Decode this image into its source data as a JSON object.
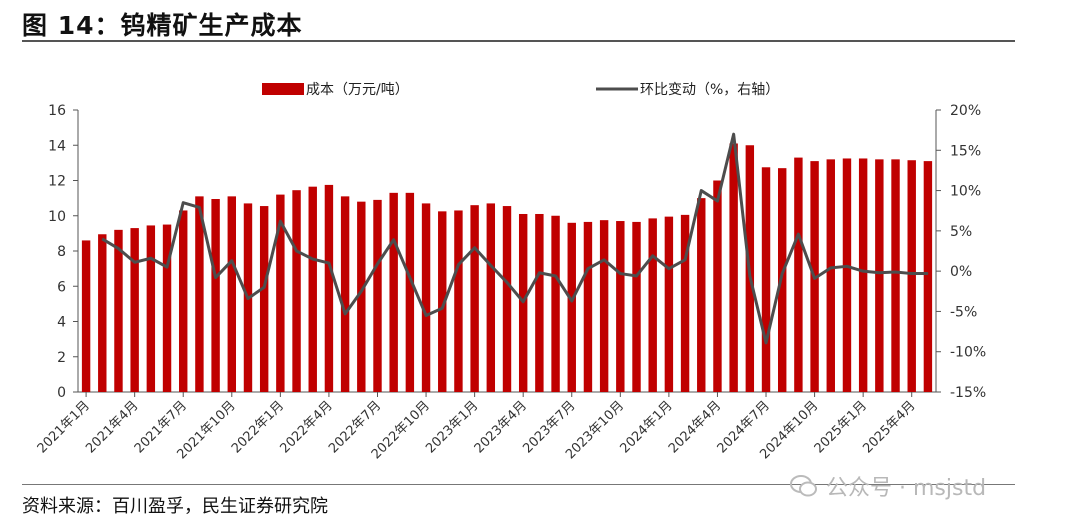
{
  "title": "图 14：钨精矿生产成本",
  "source": "资料来源：百川盈孚，民生证券研究院",
  "watermark": "公众号 · msjstd",
  "chart_data": {
    "type": "bar+line",
    "categories": [
      "2021年1月",
      "2021年2月",
      "2021年3月",
      "2021年4月",
      "2021年5月",
      "2021年6月",
      "2021年7月",
      "2021年8月",
      "2021年9月",
      "2021年10月",
      "2021年11月",
      "2021年12月",
      "2022年1月",
      "2022年2月",
      "2022年3月",
      "2022年4月",
      "2022年5月",
      "2022年6月",
      "2022年7月",
      "2022年8月",
      "2022年9月",
      "2022年10月",
      "2022年11月",
      "2022年12月",
      "2023年1月",
      "2023年2月",
      "2023年3月",
      "2023年4月",
      "2023年5月",
      "2023年6月",
      "2023年7月",
      "2023年8月",
      "2023年9月",
      "2023年10月",
      "2023年11月",
      "2023年12月",
      "2024年1月",
      "2024年2月",
      "2024年3月",
      "2024年4月",
      "2024年5月",
      "2024年6月",
      "2024年7月",
      "2024年8月",
      "2024年9月",
      "2024年10月",
      "2024年11月",
      "2024年12月",
      "2025年1月",
      "2025年2月",
      "2025年3月",
      "2025年4月",
      "2025年5月"
    ],
    "x_tick_labels": [
      "2021年1月",
      "2021年4月",
      "2021年7月",
      "2021年10月",
      "2022年1月",
      "2022年4月",
      "2022年7月",
      "2022年10月",
      "2023年1月",
      "2023年4月",
      "2023年7月",
      "2023年10月",
      "2024年1月",
      "2024年4月",
      "2024年7月",
      "2024年10月",
      "2025年1月",
      "2025年4月"
    ],
    "series": [
      {
        "name": "成本（万元/吨）",
        "type": "bar",
        "axis": "left",
        "color": "#c00000",
        "values": [
          8.6,
          8.95,
          9.2,
          9.3,
          9.45,
          9.5,
          10.3,
          11.1,
          10.95,
          11.1,
          10.7,
          10.55,
          11.2,
          11.45,
          11.65,
          11.75,
          11.1,
          10.8,
          10.9,
          11.3,
          11.3,
          10.7,
          10.25,
          10.3,
          10.6,
          10.7,
          10.55,
          10.1,
          10.1,
          10.0,
          9.6,
          9.65,
          9.75,
          9.7,
          9.65,
          9.85,
          9.95,
          10.05,
          11.0,
          12.0,
          14.1,
          14.0,
          12.75,
          12.7,
          13.3,
          13.1,
          13.2,
          13.25,
          13.25,
          13.2,
          13.2,
          13.15,
          13.1
        ]
      },
      {
        "name": "环比变动（%，右轴）",
        "type": "line",
        "axis": "right",
        "color": "#4d4d4d",
        "values": [
          null,
          4.0,
          2.8,
          1.1,
          1.6,
          0.5,
          8.5,
          7.9,
          -0.8,
          1.3,
          -3.4,
          -2.0,
          6.2,
          2.5,
          1.5,
          1.0,
          -5.3,
          -2.5,
          0.9,
          3.9,
          -0.8,
          -5.5,
          -4.6,
          0.8,
          2.9,
          0.7,
          -1.4,
          -3.8,
          -0.2,
          -0.6,
          -3.7,
          0.3,
          1.4,
          -0.3,
          -0.6,
          1.9,
          0.3,
          1.4,
          10.0,
          8.7,
          17.0,
          -0.6,
          -8.9,
          -0.3,
          4.6,
          -0.9,
          0.4,
          0.6,
          0.0,
          -0.2,
          -0.1,
          -0.3,
          -0.3
        ]
      }
    ],
    "y_left": {
      "min": 0,
      "max": 16,
      "ticks": [
        "0",
        "2",
        "4",
        "6",
        "8",
        "10",
        "12",
        "14",
        "16"
      ]
    },
    "y_right": {
      "min": -15,
      "max": 20,
      "ticks": [
        "-15%",
        "-10%",
        "-5%",
        "0%",
        "5%",
        "10%",
        "15%",
        "20%"
      ]
    },
    "legend_placement": "top-center",
    "grid": false
  }
}
